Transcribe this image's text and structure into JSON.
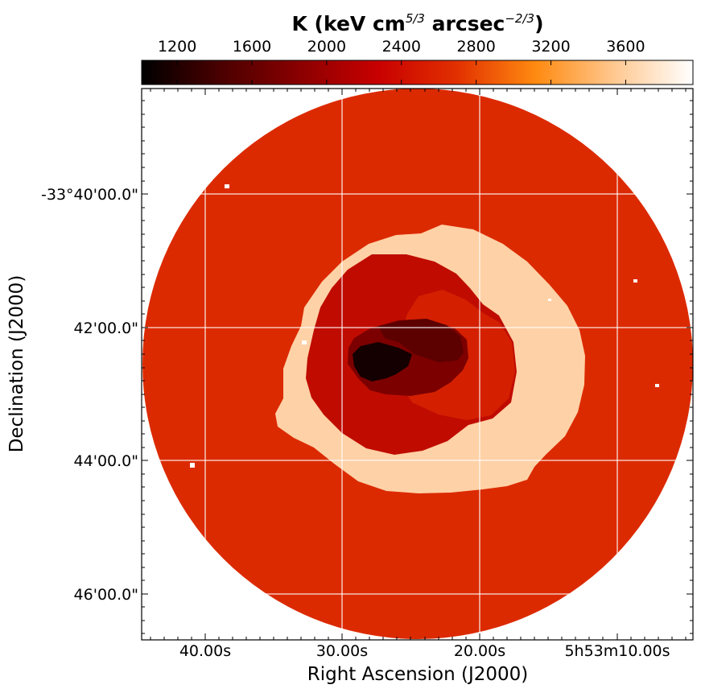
{
  "colorbar": {
    "title_main": "K (keV cm",
    "title_exp1": "5/3",
    "title_mid": " arcsec",
    "title_exp2": "−2/3",
    "title_end": ")",
    "ticks": [
      {
        "value": 1200,
        "label": "1200"
      },
      {
        "value": 1600,
        "label": "1600"
      },
      {
        "value": 2000,
        "label": "2000"
      },
      {
        "value": 2400,
        "label": "2400"
      },
      {
        "value": 2800,
        "label": "2800"
      },
      {
        "value": 3200,
        "label": "3200"
      },
      {
        "value": 3600,
        "label": "3600"
      }
    ],
    "range": [
      1010,
      3960
    ],
    "colormap": "gist_heat",
    "colors": [
      "#000000",
      "#4a0000",
      "#8a0000",
      "#c80000",
      "#e23000",
      "#ff8a10",
      "#ffc890",
      "#ffffff"
    ]
  },
  "map": {
    "xlabel": "Right Ascension (J2000)",
    "ylabel": "Declination (J2000)",
    "ra_ticks": [
      "40.00s",
      "30.00s",
      "20.00s",
      "5h53m10.00s"
    ],
    "dec_ticks": [
      "-33°40'00.0\"",
      "42'00.0\"",
      "44'00.0\"",
      "46'00.0\""
    ],
    "grid": true,
    "regions": [
      {
        "name": "outer-disk",
        "value": 2550,
        "color": "#dc2a00"
      },
      {
        "name": "bright-ring",
        "value": 3750,
        "color": "#ffd1a6"
      },
      {
        "name": "inner-region",
        "value": 2380,
        "color": "#c00c00"
      },
      {
        "name": "inner-east-lobe",
        "value": 2530,
        "color": "#d42000"
      },
      {
        "name": "core-mid",
        "value": 1900,
        "color": "#7c0000"
      },
      {
        "name": "core-dark",
        "value": 1600,
        "color": "#5c0000"
      },
      {
        "name": "core-center",
        "value": 1150,
        "color": "#140000"
      }
    ],
    "masked_color": "#ffffff"
  }
}
